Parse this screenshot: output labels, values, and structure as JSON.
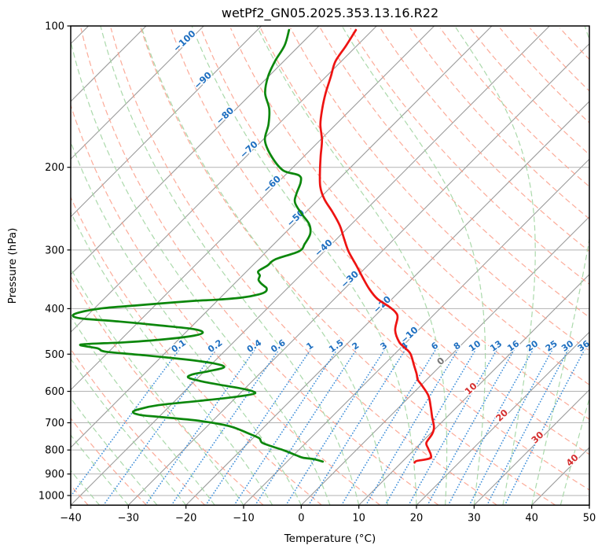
{
  "title": "wetPf2_GN05.2025.353.13.16.R22",
  "axis": {
    "xlabel": "Temperature (°C)",
    "ylabel": "Pressure (hPa)",
    "x_ticks_degC": [
      -40,
      -30,
      -20,
      -10,
      0,
      10,
      20,
      30,
      40,
      50
    ],
    "p_ticks_hPa": [
      100,
      200,
      300,
      400,
      500,
      600,
      700,
      800,
      900,
      1000
    ]
  },
  "chart_data": {
    "type": "line",
    "variant": "skewT-logP-sounding",
    "title": "wetPf2_GN05.2025.353.13.16.R22",
    "xlabel": "Temperature (°C)",
    "ylabel": "Pressure (hPa)",
    "x_range_degC": [
      -40,
      50
    ],
    "pressure_range_hPa": [
      100,
      1048.5
    ],
    "grid": true,
    "legend": "none",
    "skew": "isotherms slope 45deg up-right",
    "background": {
      "isotherms_degC": {
        "min": -120,
        "max": 50,
        "step": 10
      },
      "isotherm_inline_labels": [
        {
          "t": -100,
          "y": 55
        },
        {
          "t": -90,
          "y": 105
        },
        {
          "t": -80,
          "y": 150
        },
        {
          "t": -70,
          "y": 193
        },
        {
          "t": -60,
          "y": 237
        },
        {
          "t": -50,
          "y": 280
        },
        {
          "t": -40,
          "y": 318
        },
        {
          "t": -30,
          "y": 358
        },
        {
          "t": -20,
          "y": 390
        },
        {
          "t": -10,
          "y": 429
        },
        {
          "t": 0,
          "y": 462
        },
        {
          "t": 10,
          "y": 497
        },
        {
          "t": 20,
          "y": 531
        },
        {
          "t": 30,
          "y": 559
        },
        {
          "t": 40,
          "y": 588
        }
      ],
      "dry_adiabats_thetaK": {
        "min": 233,
        "max": 533,
        "step": 10
      },
      "moist_adiabats_startC": {
        "min": -40,
        "max": 45,
        "step": 5
      },
      "mixing_ratio_gkg": [
        0.1,
        0.2,
        0.4,
        0.6,
        1,
        1.5,
        2,
        3,
        4,
        6,
        8,
        10,
        13,
        16,
        20,
        25,
        30,
        36
      ],
      "mixing_ratio_top_hPa": 480,
      "mixing_label_hPa": 486
    },
    "series": [
      {
        "name": "temperature",
        "color": "#ee1312",
        "points_p_T": [
          [
            102,
            -72.9
          ],
          [
            110,
            -71.9
          ],
          [
            119,
            -71.0
          ],
          [
            128,
            -69.2
          ],
          [
            139,
            -67.2
          ],
          [
            150,
            -65.1
          ],
          [
            162,
            -62.7
          ],
          [
            175,
            -59.7
          ],
          [
            189,
            -57.2
          ],
          [
            203,
            -54.8
          ],
          [
            220,
            -51.9
          ],
          [
            234,
            -49.0
          ],
          [
            249,
            -45.4
          ],
          [
            266,
            -41.8
          ],
          [
            283,
            -38.9
          ],
          [
            302,
            -35.8
          ],
          [
            323,
            -32.1
          ],
          [
            344,
            -28.7
          ],
          [
            363,
            -25.7
          ],
          [
            381,
            -22.6
          ],
          [
            396,
            -19.2
          ],
          [
            407,
            -17.1
          ],
          [
            418,
            -15.8
          ],
          [
            445,
            -14.0
          ],
          [
            471,
            -11.3
          ],
          [
            484,
            -9.4
          ],
          [
            499,
            -7.3
          ],
          [
            529,
            -4.6
          ],
          [
            550,
            -2.8
          ],
          [
            567,
            -1.5
          ],
          [
            583,
            0.2
          ],
          [
            613,
            3.1
          ],
          [
            647,
            5.4
          ],
          [
            680,
            7.4
          ],
          [
            715,
            9.5
          ],
          [
            740,
            10.4
          ],
          [
            772,
            10.9
          ],
          [
            794,
            12.2
          ],
          [
            818,
            13.7
          ],
          [
            834,
            14.2
          ],
          [
            844,
            12.4
          ],
          [
            851,
            12.3
          ]
        ]
      },
      {
        "name": "dewpoint",
        "color": "#0c870c",
        "points_p_T": [
          [
            102,
            -84.5
          ],
          [
            110,
            -82.6
          ],
          [
            119,
            -81.5
          ],
          [
            128,
            -80.1
          ],
          [
            139,
            -77.7
          ],
          [
            150,
            -74.3
          ],
          [
            162,
            -71.7
          ],
          [
            175,
            -69.6
          ],
          [
            189,
            -65.8
          ],
          [
            203,
            -61.2
          ],
          [
            208,
            -57.6
          ],
          [
            215,
            -56.1
          ],
          [
            228,
            -54.8
          ],
          [
            238,
            -53.5
          ],
          [
            251,
            -50.5
          ],
          [
            264,
            -47.4
          ],
          [
            277,
            -45.5
          ],
          [
            291,
            -44.7
          ],
          [
            302,
            -44.4
          ],
          [
            314,
            -47.1
          ],
          [
            324,
            -47.4
          ],
          [
            333,
            -48.0
          ],
          [
            340,
            -47.0
          ],
          [
            347,
            -46.5
          ],
          [
            353,
            -45.5
          ],
          [
            358,
            -44.4
          ],
          [
            362,
            -43.6
          ],
          [
            368,
            -43.2
          ],
          [
            373,
            -43.9
          ],
          [
            379,
            -46.3
          ],
          [
            383,
            -50.5
          ],
          [
            385,
            -54.0
          ],
          [
            390,
            -59.5
          ],
          [
            394,
            -63.5
          ],
          [
            399,
            -68.5
          ],
          [
            407,
            -71.8
          ],
          [
            414,
            -72.5
          ],
          [
            420,
            -70.3
          ],
          [
            426,
            -63.4
          ],
          [
            434,
            -55.9
          ],
          [
            442,
            -49.3
          ],
          [
            450,
            -47.0
          ],
          [
            458,
            -48.5
          ],
          [
            466,
            -53.3
          ],
          [
            472,
            -59.0
          ],
          [
            477,
            -66.1
          ],
          [
            486,
            -62.5
          ],
          [
            494,
            -60.5
          ],
          [
            503,
            -53.0
          ],
          [
            513,
            -45.5
          ],
          [
            523,
            -39.8
          ],
          [
            533,
            -37.3
          ],
          [
            544,
            -39.4
          ],
          [
            552,
            -41.5
          ],
          [
            561,
            -41.7
          ],
          [
            572,
            -38.5
          ],
          [
            583,
            -34.2
          ],
          [
            594,
            -29.8
          ],
          [
            606,
            -27.4
          ],
          [
            617,
            -30.4
          ],
          [
            629,
            -35.9
          ],
          [
            642,
            -42.1
          ],
          [
            655,
            -44.8
          ],
          [
            665,
            -45.3
          ],
          [
            674,
            -43.5
          ],
          [
            680,
            -40.0
          ],
          [
            693,
            -32.5
          ],
          [
            712,
            -26.1
          ],
          [
            740,
            -21.2
          ],
          [
            755,
            -18.9
          ],
          [
            772,
            -17.6
          ],
          [
            787,
            -15.1
          ],
          [
            802,
            -12.4
          ],
          [
            821,
            -9.5
          ],
          [
            831,
            -7.9
          ],
          [
            837,
            -5.7
          ],
          [
            847,
            -3.8
          ]
        ]
      }
    ]
  },
  "colors": {
    "isobar_grid": "#b2b2b2",
    "isotherm": "#9b9b9b",
    "dry_adiabat": "#fb9c87",
    "moist_adiabat": "#a2d5a2",
    "mixing_line": "#3f8fd9",
    "mixing_label": "#1e6fc0",
    "iso_label_neg": "#1e6fc0",
    "iso_label_zero": "#767676",
    "iso_label_pos": "#d42f2f",
    "temperature": "#ee1312",
    "dewpoint": "#0c870c",
    "spine": "#000000"
  }
}
